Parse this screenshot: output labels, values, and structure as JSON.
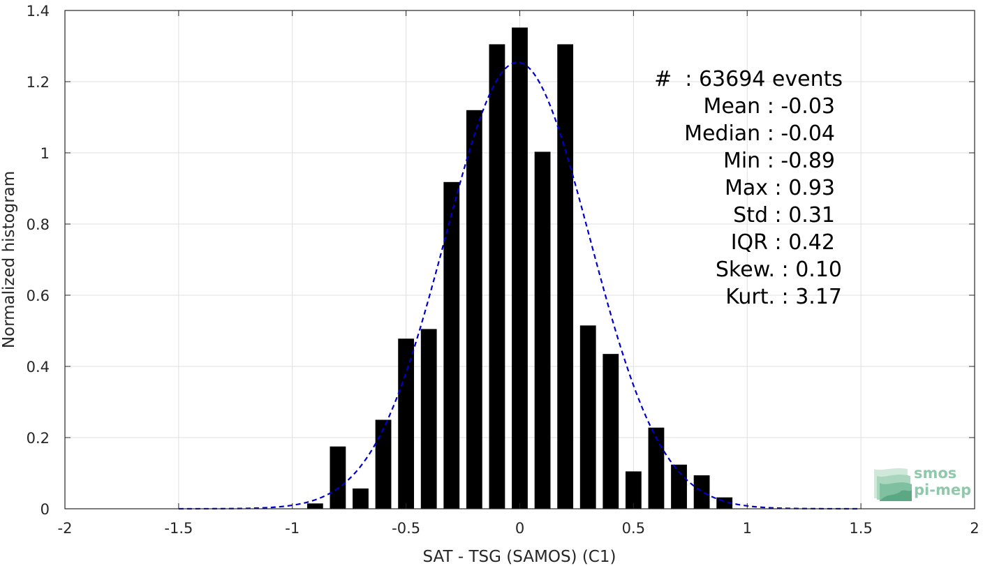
{
  "chart_data": {
    "type": "bar",
    "xlabel": "SAT - TSG (SAMOS) (C1)",
    "ylabel": "Normalized histogram",
    "xlim": [
      -2,
      2
    ],
    "ylim": [
      0,
      1.4
    ],
    "xticks": [
      -2,
      -1.5,
      -1,
      -0.5,
      0,
      0.5,
      1,
      1.5,
      2
    ],
    "xtick_labels": [
      "-2",
      "-1.5",
      "-1",
      "-0.5",
      "0",
      "0.5",
      "1",
      "1.5",
      "2"
    ],
    "yticks": [
      0,
      0.2,
      0.4,
      0.6,
      0.8,
      1,
      1.2,
      1.4
    ],
    "ytick_labels": [
      "0",
      "0.2",
      "0.4",
      "0.6",
      "0.8",
      "1",
      "1.2",
      "1.4"
    ],
    "grid": true,
    "bar_color": "#000000",
    "bar_width": 0.07,
    "bars": {
      "x": [
        -0.9,
        -0.8,
        -0.7,
        -0.6,
        -0.5,
        -0.4,
        -0.3,
        -0.2,
        -0.1,
        0.0,
        0.1,
        0.2,
        0.3,
        0.4,
        0.5,
        0.6,
        0.7,
        0.8,
        0.9
      ],
      "values": [
        0.015,
        0.175,
        0.057,
        0.25,
        0.478,
        0.505,
        0.918,
        1.12,
        1.305,
        1.352,
        1.003,
        1.305,
        0.515,
        0.435,
        0.105,
        0.228,
        0.124,
        0.094,
        0.032
      ]
    },
    "fit_curve": {
      "style": "dashed",
      "color": "#0000cc",
      "mean": -0.01,
      "std": 0.318,
      "x_range": [
        -1.5,
        1.5
      ]
    },
    "annotations": [
      "#  : 63694 events",
      "Mean : -0.03",
      "Median : -0.04",
      "Min : -0.89",
      "Max : 0.93",
      "Std : 0.31",
      "IQR : 0.42",
      "Skew. : 0.10",
      "Kurt. : 3.17"
    ]
  },
  "logo": {
    "line1": "smos",
    "line2": "pi-mep",
    "color": "#8fc8aa"
  }
}
